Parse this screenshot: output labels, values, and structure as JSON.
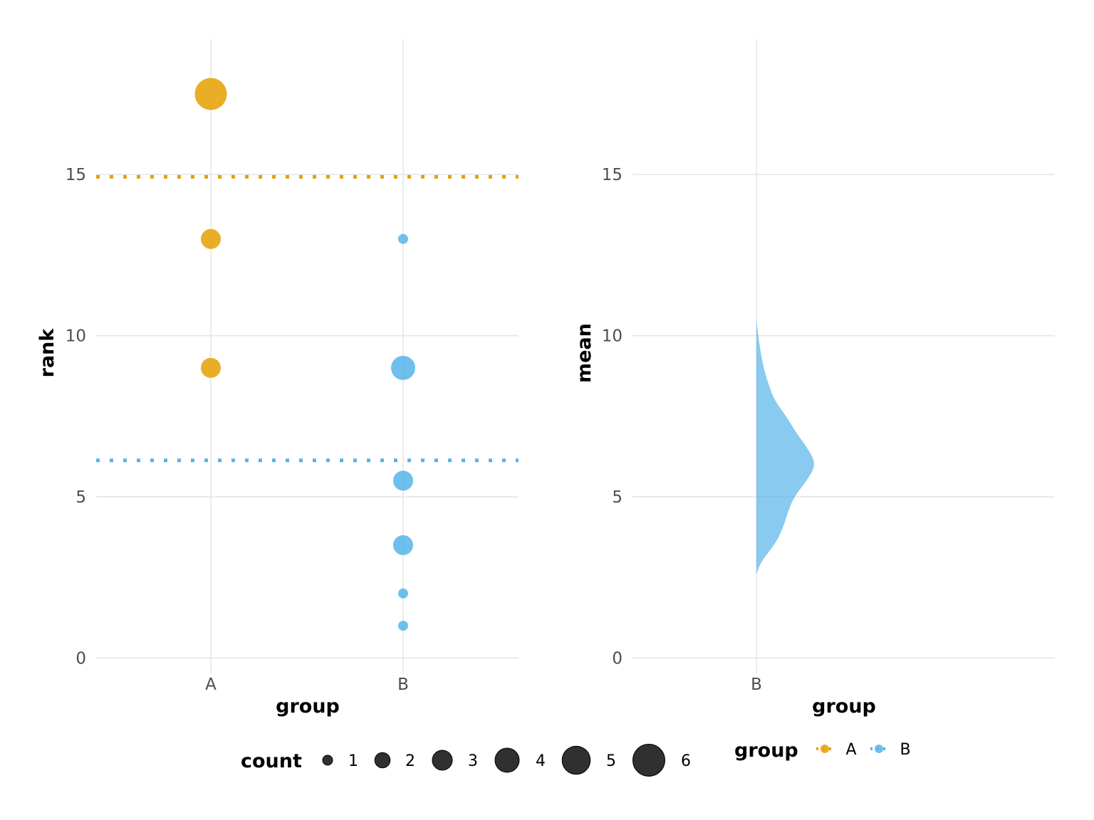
{
  "colors": {
    "A": "#E69F00",
    "B": "#56B4E9",
    "size_key": "#1a1a1a"
  },
  "chart_data": [
    {
      "type": "scatter",
      "xlabel": "group",
      "ylabel": "rank",
      "categories": [
        "A",
        "B"
      ],
      "ylim": [
        -0.5,
        19.2
      ],
      "yticks": [
        0,
        5,
        10,
        15
      ],
      "grid": true,
      "points": [
        {
          "group": "A",
          "rank": 17.5,
          "count": 6
        },
        {
          "group": "A",
          "rank": 13,
          "count": 3
        },
        {
          "group": "A",
          "rank": 9,
          "count": 3
        },
        {
          "group": "B",
          "rank": 13,
          "count": 1
        },
        {
          "group": "B",
          "rank": 9,
          "count": 4
        },
        {
          "group": "B",
          "rank": 5.5,
          "count": 3
        },
        {
          "group": "B",
          "rank": 3.5,
          "count": 3
        },
        {
          "group": "B",
          "rank": 2,
          "count": 1
        },
        {
          "group": "B",
          "rank": 1,
          "count": 1
        }
      ],
      "reference_lines": [
        {
          "group": "A",
          "y": 14.93,
          "style": "dotted"
        },
        {
          "group": "B",
          "y": 6.13,
          "style": "dotted"
        }
      ]
    },
    {
      "type": "area",
      "subtype": "half-violin",
      "xlabel": "group",
      "ylabel": "mean",
      "categories": [
        "B"
      ],
      "ylim": [
        -0.5,
        19.2
      ],
      "yticks": [
        0,
        5,
        10,
        15
      ],
      "grid": true,
      "density": {
        "group": "B",
        "y": [
          2.6,
          3.0,
          3.5,
          4.0,
          4.5,
          5.0,
          5.5,
          6.0,
          6.5,
          7.0,
          7.5,
          8.0,
          8.5,
          9.0,
          9.5,
          10.0,
          10.5
        ],
        "width": [
          0.0,
          0.08,
          0.3,
          0.44,
          0.52,
          0.63,
          0.84,
          1.0,
          0.86,
          0.66,
          0.5,
          0.3,
          0.2,
          0.12,
          0.07,
          0.03,
          0.0
        ]
      }
    }
  ],
  "legend": {
    "count": {
      "title": "count",
      "position": "bottom",
      "items": [
        "1",
        "2",
        "3",
        "4",
        "5",
        "6"
      ]
    },
    "group": {
      "title": "group",
      "position": "bottom",
      "items": [
        "A",
        "B"
      ]
    }
  }
}
